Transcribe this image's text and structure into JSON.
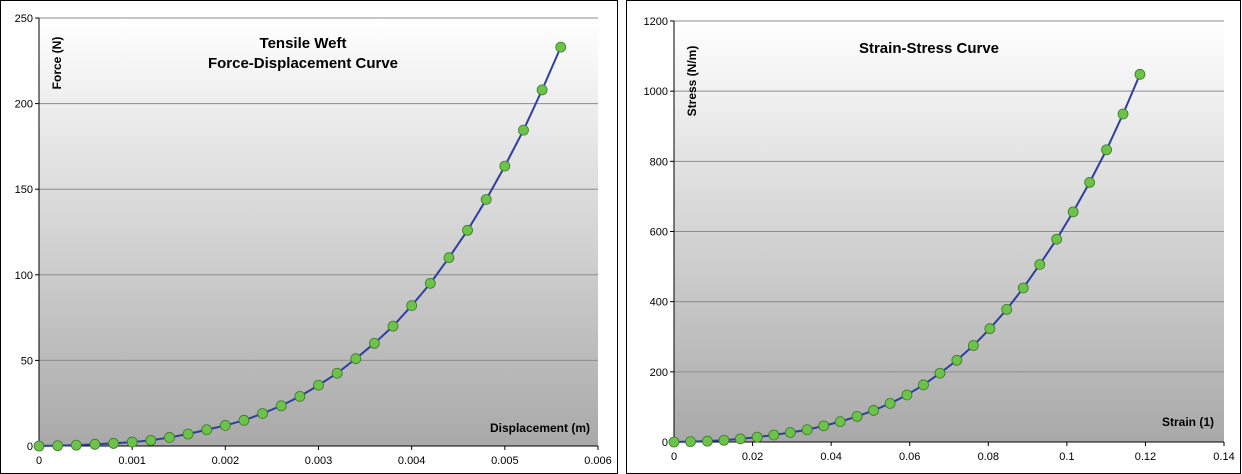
{
  "chart_data": [
    {
      "type": "line",
      "title_lines": [
        "Tensile Weft",
        "Force-Displacement Curve"
      ],
      "xlabel": "Displacement (m)",
      "ylabel": "Force (N)",
      "xlim": [
        0,
        0.006
      ],
      "ylim": [
        0,
        250
      ],
      "x_ticks": [
        0,
        0.001,
        0.002,
        0.003,
        0.004,
        0.005,
        0.006
      ],
      "x_tick_labels": [
        "0",
        "0.001",
        "0.002",
        "0.003",
        "0.004",
        "0.005",
        "0.006"
      ],
      "y_ticks": [
        0,
        50,
        100,
        150,
        200,
        250
      ],
      "y_tick_labels": [
        "0",
        "50",
        "100",
        "150",
        "200",
        "250"
      ],
      "grid": "horizontal",
      "line_color": "#2e3f9e",
      "marker_color": "#6cc24a",
      "series": [
        {
          "x": [
            0,
            0.0002,
            0.0004,
            0.0006,
            0.0008,
            0.001,
            0.0012,
            0.0014,
            0.0016,
            0.0018,
            0.002,
            0.0022,
            0.0024,
            0.0026,
            0.0028,
            0.003,
            0.0032,
            0.0034,
            0.0036,
            0.0038,
            0.004,
            0.0042,
            0.0044,
            0.0046,
            0.0048,
            0.005,
            0.0052,
            0.0054,
            0.0056
          ],
          "y": [
            0,
            0.2,
            0.5,
            1,
            1.5,
            2.3,
            3.3,
            5,
            7,
            9.5,
            12,
            15,
            19,
            23.5,
            29,
            35.5,
            42.5,
            51,
            60,
            70,
            82,
            95,
            110,
            126,
            144,
            163.5,
            184.5,
            208,
            233
          ]
        }
      ]
    },
    {
      "type": "line",
      "title_lines": [
        "Strain-Stress Curve"
      ],
      "xlabel": "Strain (1)",
      "ylabel": "Stress (N/m)",
      "xlim": [
        0,
        0.14
      ],
      "ylim": [
        0,
        1200
      ],
      "x_ticks": [
        0,
        0.02,
        0.04,
        0.06,
        0.08,
        0.1,
        0.12,
        0.14
      ],
      "x_tick_labels": [
        "0",
        "0.02",
        "0.04",
        "0.06",
        "0.08",
        "0.1",
        "0.12",
        "0.14"
      ],
      "y_ticks": [
        0,
        200,
        400,
        600,
        800,
        1000,
        1200
      ],
      "y_tick_labels": [
        "0",
        "200",
        "400",
        "600",
        "800",
        "1000",
        "1200"
      ],
      "grid": "horizontal",
      "line_color": "#2e3f9e",
      "marker_color": "#6cc24a",
      "series": [
        {
          "x": [
            0,
            0.0042,
            0.0085,
            0.0127,
            0.0169,
            0.0212,
            0.0254,
            0.0296,
            0.0339,
            0.0381,
            0.0423,
            0.0466,
            0.0508,
            0.055,
            0.0593,
            0.0635,
            0.0677,
            0.072,
            0.0762,
            0.0804,
            0.0847,
            0.0889,
            0.0931,
            0.0974,
            0.1016,
            0.1058,
            0.1101,
            0.1143,
            0.1186
          ],
          "y": [
            0,
            1,
            2.5,
            5,
            9,
            14,
            20,
            27,
            35,
            46,
            58,
            73,
            90,
            110,
            134,
            163,
            196,
            233,
            275,
            323,
            378,
            439,
            506,
            578,
            656,
            740,
            833,
            935,
            1048
          ]
        }
      ]
    }
  ]
}
